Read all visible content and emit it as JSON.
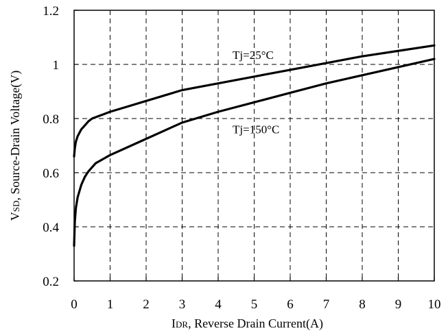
{
  "chart_data": {
    "type": "line",
    "title": "",
    "xlabel": "IDR, Reverse Drain Current(A)",
    "xlabel_main": "I",
    "xlabel_sub": "DR",
    "xlabel_rest": ", Reverse Drain Current(A)",
    "ylabel": "VSD, Source-Drain Voltage(V)",
    "ylabel_main": "V",
    "ylabel_sub": "SD",
    "ylabel_rest": ", Source-Drain Voltage(V)",
    "xlim": [
      0,
      10
    ],
    "ylim": [
      0.2,
      1.2
    ],
    "xticks": [
      0,
      1,
      2,
      3,
      4,
      5,
      6,
      7,
      8,
      9,
      10
    ],
    "yticks": [
      0.2,
      0.4,
      0.6,
      0.8,
      1.0,
      1.2
    ],
    "xtick_labels": [
      "0",
      "1",
      "2",
      "3",
      "4",
      "5",
      "6",
      "7",
      "8",
      "9",
      "10"
    ],
    "ytick_labels": [
      "0.2",
      "0.4",
      "0.6",
      "0.8",
      "1",
      "1.2"
    ],
    "grid": true,
    "series": [
      {
        "name": "Tj=25°C",
        "x": [
          0,
          0.02,
          0.05,
          0.1,
          0.2,
          0.3,
          0.4,
          0.5,
          0.6,
          0.8,
          1,
          1.5,
          2,
          2.5,
          3,
          4,
          5,
          6,
          7,
          8,
          9,
          10
        ],
        "y": [
          0.66,
          0.69,
          0.715,
          0.735,
          0.76,
          0.775,
          0.79,
          0.8,
          0.805,
          0.815,
          0.825,
          0.845,
          0.865,
          0.885,
          0.905,
          0.93,
          0.955,
          0.98,
          1.005,
          1.03,
          1.05,
          1.07
        ]
      },
      {
        "name": "Tj=150°C",
        "x": [
          0,
          0.02,
          0.05,
          0.1,
          0.2,
          0.3,
          0.4,
          0.5,
          0.6,
          0.8,
          1,
          1.5,
          2,
          2.5,
          3,
          4,
          5,
          6,
          7,
          8,
          9,
          10
        ],
        "y": [
          0.33,
          0.42,
          0.47,
          0.51,
          0.555,
          0.585,
          0.605,
          0.62,
          0.635,
          0.65,
          0.665,
          0.695,
          0.725,
          0.755,
          0.785,
          0.825,
          0.86,
          0.895,
          0.93,
          0.96,
          0.99,
          1.02
        ]
      }
    ],
    "annotations": [
      {
        "text": "Tj=25°C",
        "x": 4.4,
        "y": 1.02
      },
      {
        "text": "Tj=150°C",
        "x": 4.4,
        "y": 0.745
      }
    ]
  }
}
